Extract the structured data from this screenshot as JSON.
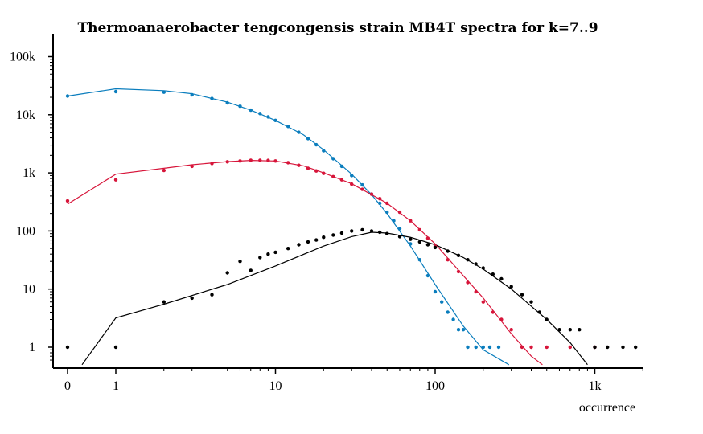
{
  "chart_data": {
    "type": "scatter",
    "title": "Thermoanaerobacter tengcongensis strain MB4T spectra for k=7..9",
    "xlabel": "occurrence",
    "ylabel": "",
    "x_scale": "log1p",
    "y_scale": "log",
    "xlim": [
      0,
      2000
    ],
    "ylim": [
      0.5,
      150000
    ],
    "x_ticks": [
      {
        "value": 0,
        "label": "0"
      },
      {
        "value": 1,
        "label": "1"
      },
      {
        "value": 10,
        "label": "10"
      },
      {
        "value": 100,
        "label": "100"
      },
      {
        "value": 1000,
        "label": "1k"
      }
    ],
    "y_ticks": [
      {
        "value": 1,
        "label": "1"
      },
      {
        "value": 10,
        "label": "10"
      },
      {
        "value": 100,
        "label": "100"
      },
      {
        "value": 1000,
        "label": "1k"
      },
      {
        "value": 10000,
        "label": "10k"
      },
      {
        "value": 100000,
        "label": "100k"
      }
    ],
    "grid": false,
    "legend": "none",
    "series": [
      {
        "color": "#0a7dbd",
        "points": [
          [
            0,
            21000
          ],
          [
            1,
            25000
          ],
          [
            2,
            24500
          ],
          [
            3,
            22000
          ],
          [
            4,
            19000
          ],
          [
            5,
            16000
          ],
          [
            6,
            14000
          ],
          [
            7,
            12000
          ],
          [
            8,
            10500
          ],
          [
            9,
            9200
          ],
          [
            10,
            8000
          ],
          [
            12,
            6300
          ],
          [
            14,
            5000
          ],
          [
            16,
            3900
          ],
          [
            18,
            3050
          ],
          [
            20,
            2400
          ],
          [
            23,
            1750
          ],
          [
            26,
            1300
          ],
          [
            30,
            900
          ],
          [
            35,
            620
          ],
          [
            40,
            430
          ],
          [
            45,
            300
          ],
          [
            50,
            210
          ],
          [
            55,
            150
          ],
          [
            60,
            110
          ],
          [
            70,
            60
          ],
          [
            80,
            32
          ],
          [
            90,
            17
          ],
          [
            100,
            9
          ],
          [
            110,
            6
          ],
          [
            120,
            4
          ],
          [
            130,
            3
          ],
          [
            140,
            2
          ],
          [
            150,
            2
          ],
          [
            160,
            1
          ],
          [
            180,
            1
          ],
          [
            200,
            1
          ],
          [
            220,
            1
          ],
          [
            250,
            1
          ]
        ],
        "fit": [
          [
            0,
            21000
          ],
          [
            1,
            28000
          ],
          [
            2,
            26000
          ],
          [
            3,
            23000
          ],
          [
            5,
            16500
          ],
          [
            7,
            12000
          ],
          [
            10,
            8000
          ],
          [
            15,
            4500
          ],
          [
            20,
            2500
          ],
          [
            30,
            950
          ],
          [
            40,
            420
          ],
          [
            50,
            200
          ],
          [
            70,
            55
          ],
          [
            100,
            12
          ],
          [
            150,
            2.3
          ],
          [
            200,
            0.9
          ],
          [
            290,
            0.5
          ]
        ]
      },
      {
        "color": "#d7153a",
        "points": [
          [
            0,
            330
          ],
          [
            1,
            760
          ],
          [
            2,
            1100
          ],
          [
            3,
            1300
          ],
          [
            4,
            1450
          ],
          [
            5,
            1550
          ],
          [
            6,
            1600
          ],
          [
            7,
            1650
          ],
          [
            8,
            1650
          ],
          [
            9,
            1640
          ],
          [
            10,
            1600
          ],
          [
            12,
            1500
          ],
          [
            14,
            1350
          ],
          [
            16,
            1200
          ],
          [
            18,
            1080
          ],
          [
            20,
            980
          ],
          [
            23,
            860
          ],
          [
            26,
            760
          ],
          [
            30,
            640
          ],
          [
            35,
            520
          ],
          [
            40,
            430
          ],
          [
            45,
            360
          ],
          [
            50,
            300
          ],
          [
            60,
            210
          ],
          [
            70,
            150
          ],
          [
            80,
            105
          ],
          [
            90,
            75
          ],
          [
            100,
            55
          ],
          [
            120,
            32
          ],
          [
            140,
            20
          ],
          [
            160,
            13
          ],
          [
            180,
            9
          ],
          [
            200,
            6
          ],
          [
            230,
            4
          ],
          [
            260,
            3
          ],
          [
            300,
            2
          ],
          [
            350,
            1
          ],
          [
            400,
            1
          ],
          [
            500,
            1
          ],
          [
            700,
            1
          ],
          [
            1000,
            1
          ]
        ],
        "fit": [
          [
            0,
            290
          ],
          [
            1,
            950
          ],
          [
            2,
            1200
          ],
          [
            3,
            1380
          ],
          [
            5,
            1560
          ],
          [
            7,
            1640
          ],
          [
            10,
            1600
          ],
          [
            15,
            1320
          ],
          [
            20,
            1000
          ],
          [
            30,
            650
          ],
          [
            50,
            300
          ],
          [
            70,
            150
          ],
          [
            100,
            60
          ],
          [
            150,
            17
          ],
          [
            200,
            7
          ],
          [
            300,
            1.7
          ],
          [
            400,
            0.7
          ],
          [
            470,
            0.5
          ]
        ]
      },
      {
        "color": "#000000",
        "points": [
          [
            0,
            1
          ],
          [
            1,
            1
          ],
          [
            2,
            6
          ],
          [
            3,
            7
          ],
          [
            4,
            8
          ],
          [
            5,
            19
          ],
          [
            6,
            30
          ],
          [
            7,
            21
          ],
          [
            8,
            35
          ],
          [
            9,
            40
          ],
          [
            10,
            43
          ],
          [
            12,
            50
          ],
          [
            14,
            58
          ],
          [
            16,
            65
          ],
          [
            18,
            70
          ],
          [
            20,
            78
          ],
          [
            23,
            85
          ],
          [
            26,
            92
          ],
          [
            30,
            100
          ],
          [
            35,
            105
          ],
          [
            40,
            100
          ],
          [
            45,
            95
          ],
          [
            50,
            90
          ],
          [
            60,
            80
          ],
          [
            70,
            72
          ],
          [
            80,
            65
          ],
          [
            90,
            58
          ],
          [
            100,
            52
          ],
          [
            120,
            45
          ],
          [
            140,
            38
          ],
          [
            160,
            32
          ],
          [
            180,
            27
          ],
          [
            200,
            23
          ],
          [
            230,
            18
          ],
          [
            260,
            15
          ],
          [
            300,
            11
          ],
          [
            350,
            8
          ],
          [
            400,
            6
          ],
          [
            450,
            4
          ],
          [
            500,
            3
          ],
          [
            600,
            2
          ],
          [
            700,
            2
          ],
          [
            800,
            2
          ],
          [
            1000,
            1
          ],
          [
            1200,
            1
          ],
          [
            1500,
            1
          ],
          [
            1800,
            1
          ]
        ],
        "fit": [
          [
            0.3,
            0.5
          ],
          [
            1,
            3.2
          ],
          [
            2,
            5.5
          ],
          [
            5,
            12
          ],
          [
            10,
            25
          ],
          [
            20,
            55
          ],
          [
            30,
            80
          ],
          [
            40,
            95
          ],
          [
            50,
            92
          ],
          [
            70,
            78
          ],
          [
            100,
            58
          ],
          [
            150,
            35
          ],
          [
            200,
            22
          ],
          [
            300,
            10
          ],
          [
            500,
            3
          ],
          [
            700,
            1.2
          ],
          [
            900,
            0.5
          ]
        ]
      }
    ]
  }
}
